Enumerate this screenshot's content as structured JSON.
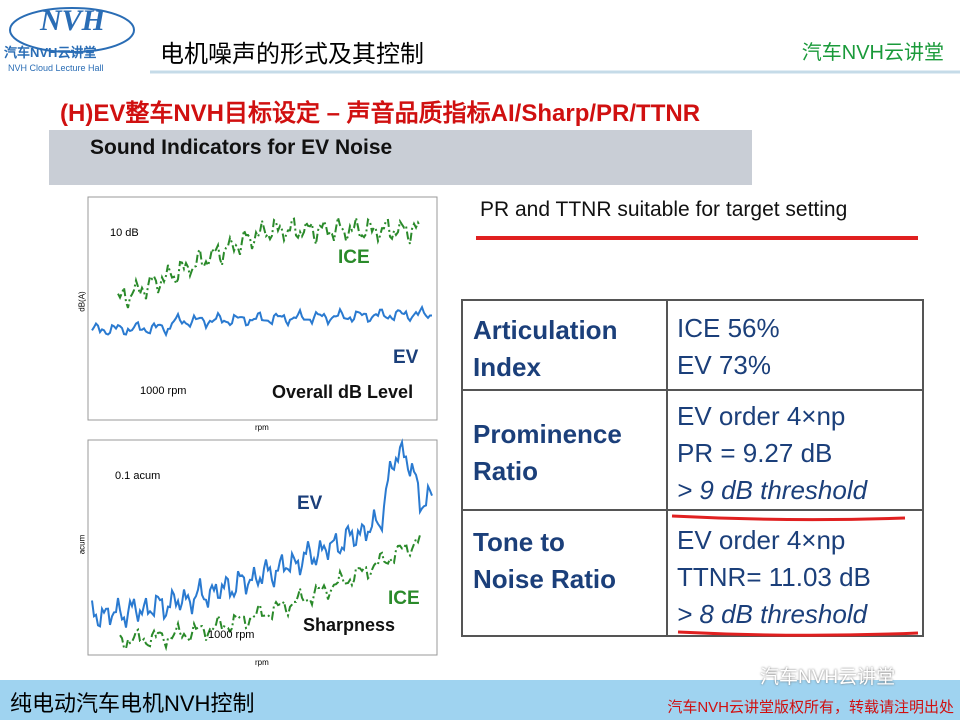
{
  "header": {
    "logo_title": "NVH",
    "logo_sub": "汽车NVH云讲堂",
    "logo_en": "NVH Cloud Lecture Hall",
    "title": "电机噪声的形式及其控制",
    "brand": "汽车NVH云讲堂"
  },
  "slide_title": "(H)EV整车NVH目标设定 – 声音品质指标AI/Sharp/PR/TTNR",
  "banner": "Sound Indicators for EV Noise",
  "note": "PR and TTNR suitable for target setting",
  "plots": [
    {
      "scale": "10 dB",
      "ylabel": "dB(A)",
      "xlabel": "rpm",
      "rpm": "1000 rpm",
      "label_ice": "ICE",
      "label_ev": "EV",
      "caption": "Overall dB Level"
    },
    {
      "scale": "0.1 acum",
      "ylabel": "acum",
      "xlabel": "rpm",
      "rpm": "1000 rpm",
      "label_ice": "ICE",
      "label_ev": "EV",
      "caption": "Sharpness"
    }
  ],
  "table": {
    "rows": [
      {
        "name": [
          "Articulation",
          "Index"
        ],
        "values": [
          "ICE 56%",
          "EV 73%"
        ]
      },
      {
        "name": [
          "Prominence",
          "Ratio"
        ],
        "values": [
          "EV order 4×np",
          "PR = 9.27 dB",
          "> 9 dB threshold"
        ]
      },
      {
        "name": [
          "Tone to",
          "Noise Ratio"
        ],
        "values": [
          "EV order 4×np",
          "TTNR= 11.03 dB",
          "> 8 dB threshold"
        ]
      }
    ]
  },
  "footer": {
    "left": "纯电动汽车电机NVH控制",
    "watermark": "汽车NVH云讲堂",
    "right": "汽车NVH云讲堂版权所有，转载请注明出处"
  }
}
